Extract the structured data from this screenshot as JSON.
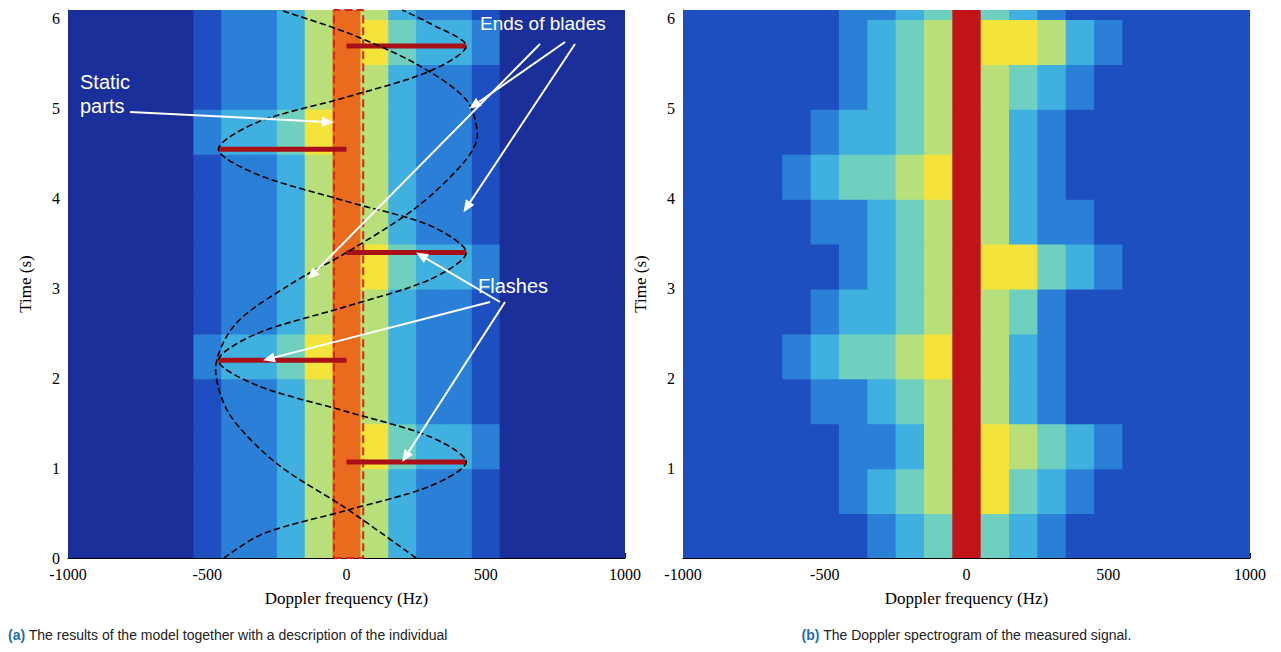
{
  "chart_data": [
    {
      "type": "heatmap",
      "title": "(a) The results of the model together with a description of the individual",
      "x_label": "Doppler frequency (Hz)",
      "y_label": "Time (s)",
      "xlim": [
        -1000,
        1000
      ],
      "ylim": [
        0,
        6.1
      ],
      "xticks": [
        -1000,
        -500,
        0,
        500,
        1000
      ],
      "yticks": [
        0,
        1,
        2,
        3,
        4,
        5,
        6
      ],
      "zlim": [
        0,
        10
      ],
      "cells": {
        "x": [
          -1000,
          -900,
          -800,
          -700,
          -600,
          -500,
          -400,
          -300,
          -200,
          -100,
          0,
          100,
          200,
          300,
          400,
          500,
          600,
          700,
          800,
          900,
          1000
        ],
        "y": [
          0.25,
          0.75,
          1.25,
          1.75,
          2.25,
          2.75,
          3.25,
          3.75,
          4.25,
          4.75,
          5.25,
          5.75,
          6.25
        ],
        "values": [
          [
            1,
            1,
            1,
            1,
            1,
            2,
            3,
            3,
            4,
            6,
            9,
            6,
            4,
            3,
            3,
            2,
            1,
            1,
            1,
            1,
            1
          ],
          [
            1,
            1,
            1,
            1,
            1,
            2,
            3,
            3,
            4,
            6,
            9,
            6,
            4,
            3,
            3,
            2,
            1,
            1,
            1,
            1,
            1
          ],
          [
            1,
            1,
            1,
            1,
            1,
            2,
            3,
            3,
            4,
            6,
            9,
            7,
            5,
            4,
            4,
            3,
            1,
            1,
            1,
            1,
            1
          ],
          [
            1,
            1,
            1,
            1,
            1,
            2,
            3,
            3,
            4,
            6,
            9,
            6,
            4,
            3,
            3,
            2,
            1,
            1,
            1,
            1,
            1
          ],
          [
            1,
            1,
            1,
            1,
            1,
            3,
            4,
            4,
            5,
            7,
            9,
            6,
            4,
            3,
            3,
            2,
            1,
            1,
            1,
            1,
            1
          ],
          [
            1,
            1,
            1,
            1,
            1,
            2,
            3,
            3,
            4,
            6,
            9,
            6,
            4,
            3,
            3,
            2,
            1,
            1,
            1,
            1,
            1
          ],
          [
            1,
            1,
            1,
            1,
            1,
            2,
            3,
            3,
            4,
            6,
            9,
            7,
            5,
            4,
            4,
            3,
            1,
            1,
            1,
            1,
            1
          ],
          [
            1,
            1,
            1,
            1,
            1,
            2,
            3,
            3,
            4,
            6,
            9,
            6,
            4,
            3,
            3,
            2,
            1,
            1,
            1,
            1,
            1
          ],
          [
            1,
            1,
            1,
            1,
            1,
            2,
            3,
            3,
            4,
            6,
            9,
            6,
            4,
            3,
            3,
            2,
            1,
            1,
            1,
            1,
            1
          ],
          [
            1,
            1,
            1,
            1,
            1,
            3,
            4,
            4,
            5,
            7,
            9,
            6,
            4,
            3,
            3,
            2,
            1,
            1,
            1,
            1,
            1
          ],
          [
            1,
            1,
            1,
            1,
            1,
            2,
            3,
            3,
            4,
            6,
            9,
            6,
            4,
            3,
            3,
            2,
            1,
            1,
            1,
            1,
            1
          ],
          [
            1,
            1,
            1,
            1,
            1,
            2,
            3,
            3,
            4,
            6,
            9,
            7,
            5,
            4,
            4,
            3,
            1,
            1,
            1,
            1,
            1
          ],
          [
            1,
            1,
            1,
            1,
            1,
            2,
            3,
            3,
            4,
            6,
            9,
            6,
            4,
            3,
            3,
            2,
            1,
            1,
            1,
            1,
            1
          ]
        ]
      },
      "curves": [
        {
          "color": "#000000",
          "line_style": "dashed",
          "x": [
            -440,
            -300,
            0,
            300,
            430,
            300,
            0,
            -320,
            -460,
            -320,
            0,
            300,
            430,
            300,
            0,
            -320,
            -460,
            -320,
            0,
            300,
            430,
            300,
            200
          ],
          "y": [
            0,
            0.27,
            0.53,
            0.8,
            1.07,
            1.35,
            1.63,
            1.92,
            2.2,
            2.5,
            2.8,
            3.1,
            3.4,
            3.7,
            3.97,
            4.27,
            4.55,
            4.85,
            5.13,
            5.42,
            5.7,
            5.95,
            6.1
          ]
        },
        {
          "color": "#000000",
          "line_style": "dashed",
          "x": [
            250,
            0,
            -250,
            -420,
            -470,
            -400,
            -200,
            0,
            250,
            420,
            470,
            430,
            250,
            0,
            -240
          ],
          "y": [
            0,
            0.55,
            1.05,
            1.6,
            2.1,
            2.6,
            3.05,
            3.4,
            3.9,
            4.4,
            4.7,
            5.1,
            5.5,
            5.85,
            6.1
          ]
        }
      ],
      "flashes": [
        {
          "y": 1.07,
          "x": [
            0,
            430
          ]
        },
        {
          "y": 2.2,
          "x": [
            -460,
            0
          ]
        },
        {
          "y": 3.4,
          "x": [
            0,
            430
          ]
        },
        {
          "y": 4.55,
          "x": [
            -460,
            0
          ]
        },
        {
          "y": 5.7,
          "x": [
            0,
            430
          ]
        }
      ],
      "static_band": [
        -45,
        60
      ],
      "annotations": [
        "Static parts",
        "Ends of blades",
        "Flashes"
      ],
      "tick_labels": true
    },
    {
      "type": "heatmap",
      "title": "(b) The Doppler spectrogram of the measured signal.",
      "x_label": "Doppler frequency (Hz)",
      "y_label": "Time (s)",
      "xlim": [
        -1000,
        1000
      ],
      "ylim": [
        0,
        6.1
      ],
      "xticks": [
        -1000,
        -500,
        0,
        500,
        1000
      ],
      "yticks": [
        1,
        2,
        3,
        4,
        5,
        6
      ],
      "zlim": [
        0,
        10
      ],
      "cells": {
        "x": [
          -1000,
          -900,
          -800,
          -700,
          -600,
          -500,
          -400,
          -300,
          -200,
          -100,
          0,
          100,
          200,
          300,
          400,
          500,
          600,
          700,
          800,
          900,
          1000
        ],
        "y": [
          0.25,
          0.75,
          1.25,
          1.75,
          2.25,
          2.75,
          3.25,
          3.75,
          4.25,
          4.75,
          5.25,
          5.75,
          6.25
        ],
        "values": [
          [
            2,
            2,
            2,
            2,
            2,
            2,
            2,
            3,
            4,
            5,
            10,
            5,
            4,
            3,
            2,
            2,
            2,
            2,
            2,
            2,
            2
          ],
          [
            2,
            2,
            2,
            2,
            2,
            2,
            3,
            4,
            5,
            6,
            10,
            7,
            5,
            4,
            3,
            2,
            2,
            2,
            2,
            2,
            2
          ],
          [
            2,
            2,
            2,
            2,
            2,
            2,
            3,
            3,
            4,
            6,
            10,
            7,
            6,
            5,
            4,
            3,
            2,
            2,
            2,
            2,
            2
          ],
          [
            2,
            2,
            2,
            2,
            2,
            3,
            3,
            4,
            5,
            6,
            10,
            6,
            4,
            3,
            2,
            2,
            2,
            2,
            2,
            2,
            2
          ],
          [
            2,
            2,
            2,
            2,
            3,
            4,
            5,
            5,
            6,
            7,
            10,
            6,
            4,
            3,
            2,
            2,
            2,
            2,
            2,
            2,
            2
          ],
          [
            2,
            2,
            2,
            2,
            2,
            3,
            4,
            4,
            5,
            6,
            10,
            6,
            5,
            3,
            2,
            2,
            2,
            2,
            2,
            2,
            2
          ],
          [
            2,
            2,
            2,
            2,
            2,
            2,
            3,
            4,
            5,
            6,
            10,
            7,
            7,
            5,
            4,
            3,
            2,
            2,
            2,
            2,
            2
          ],
          [
            2,
            2,
            2,
            2,
            2,
            3,
            3,
            4,
            5,
            6,
            10,
            6,
            4,
            3,
            3,
            2,
            2,
            2,
            2,
            2,
            2
          ],
          [
            2,
            2,
            2,
            2,
            3,
            4,
            5,
            5,
            6,
            7,
            10,
            6,
            4,
            3,
            2,
            2,
            2,
            2,
            2,
            2,
            2
          ],
          [
            2,
            2,
            2,
            2,
            2,
            3,
            4,
            4,
            5,
            6,
            10,
            6,
            4,
            3,
            2,
            2,
            2,
            2,
            2,
            2,
            2
          ],
          [
            2,
            2,
            2,
            2,
            2,
            2,
            3,
            4,
            5,
            6,
            10,
            6,
            5,
            4,
            3,
            2,
            2,
            2,
            2,
            2,
            2
          ],
          [
            2,
            2,
            2,
            2,
            2,
            2,
            3,
            4,
            5,
            6,
            10,
            7,
            7,
            6,
            4,
            3,
            2,
            2,
            2,
            2,
            2
          ],
          [
            2,
            2,
            2,
            2,
            2,
            2,
            3,
            3,
            4,
            5,
            10,
            5,
            4,
            3,
            2,
            2,
            2,
            2,
            2,
            2,
            2
          ]
        ]
      },
      "tick_labels": true
    }
  ]
}
